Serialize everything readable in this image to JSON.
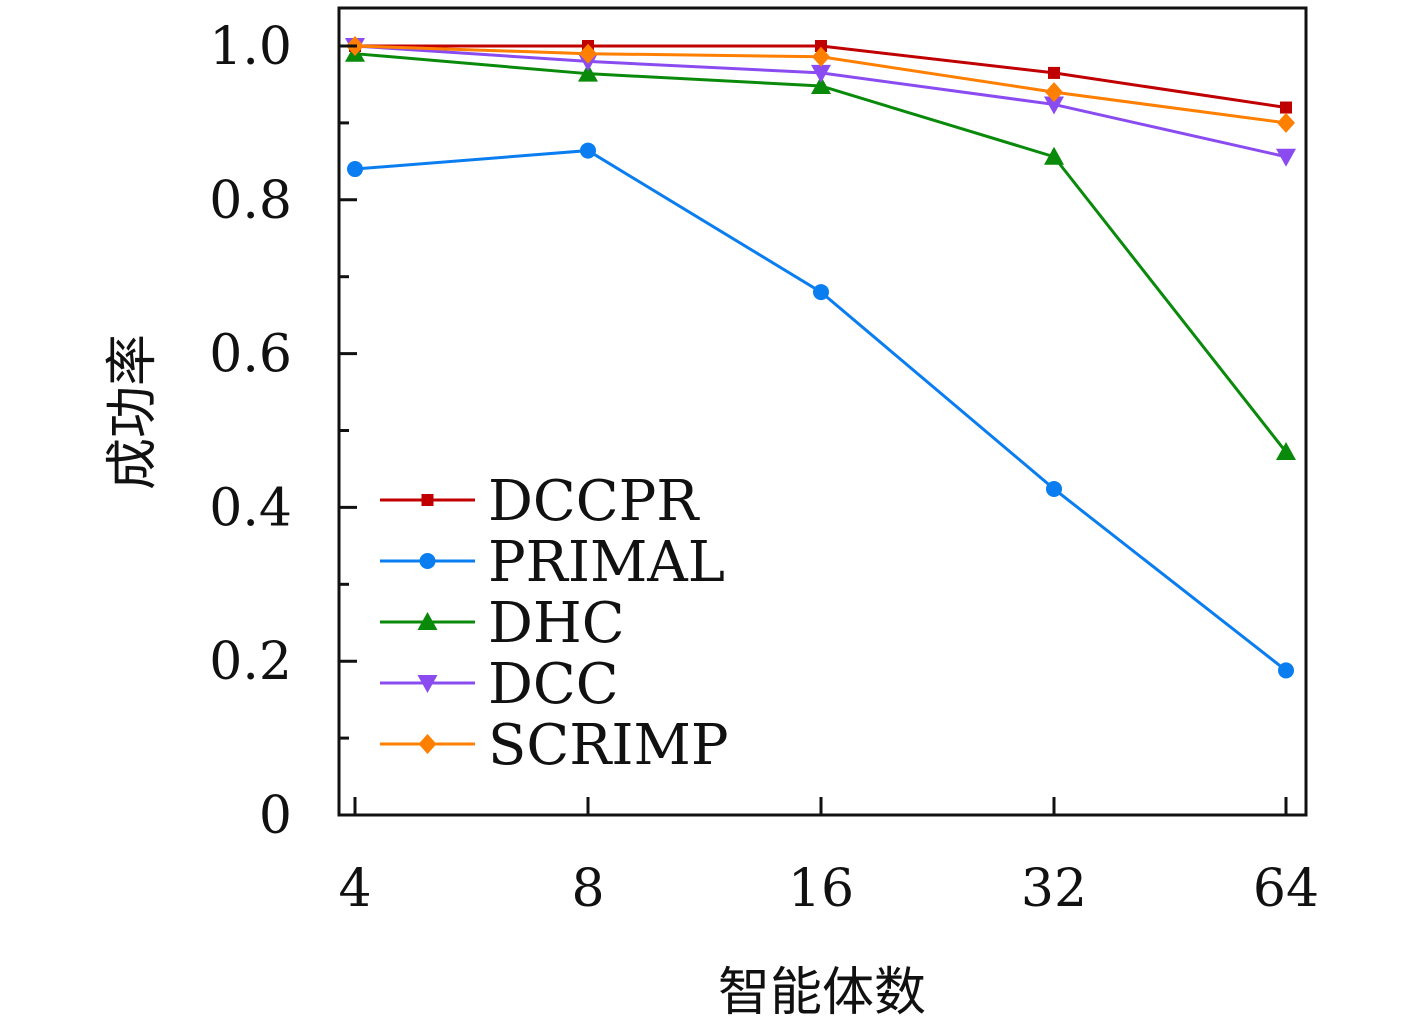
{
  "chart_data": {
    "type": "line",
    "title": "",
    "xlabel": "智能体数",
    "ylabel": "成功率",
    "categories": [
      "4",
      "8",
      "16",
      "32",
      "64"
    ],
    "ylim": [
      0,
      1.0
    ],
    "y_ticks": [
      "0",
      "0.2",
      "0.4",
      "0.6",
      "0.8",
      "1.0"
    ],
    "y_tick_values": [
      0,
      0.2,
      0.4,
      0.6,
      0.8,
      1.0
    ],
    "grid": false,
    "legend_position": "lower-left",
    "series": [
      {
        "name": "DCCPR",
        "color": "#c00000",
        "marker": "square",
        "values": [
          1.0,
          1.0,
          1.0,
          0.965,
          0.92
        ]
      },
      {
        "name": "PRIMAL",
        "color": "#0a7ef0",
        "marker": "circle",
        "values": [
          0.84,
          0.864,
          0.68,
          0.424,
          0.188
        ]
      },
      {
        "name": "DHC",
        "color": "#0a8a0a",
        "marker": "triangle-up",
        "values": [
          0.99,
          0.964,
          0.948,
          0.856,
          0.472
        ]
      },
      {
        "name": "DCC",
        "color": "#8a4cf0",
        "marker": "triangle-down",
        "values": [
          1.0,
          0.98,
          0.965,
          0.924,
          0.856
        ]
      },
      {
        "name": "SCRIMP",
        "color": "#ff7f00",
        "marker": "diamond",
        "values": [
          1.0,
          0.99,
          0.986,
          0.94,
          0.9
        ]
      }
    ]
  }
}
